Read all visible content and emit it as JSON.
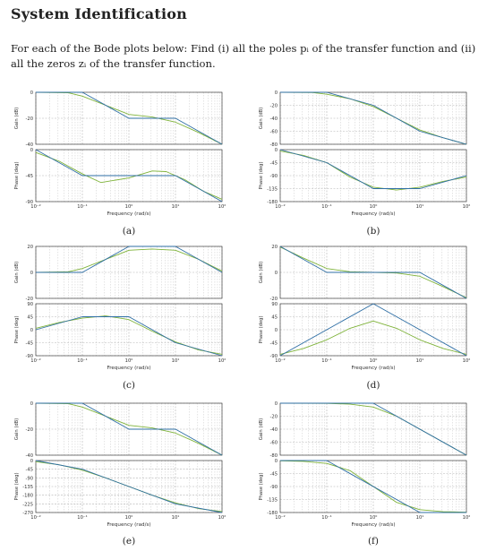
{
  "header": {
    "title": "System Identification",
    "instructions": "For each of the Bode plots below: Find (i) all the poles pᵢ of the transfer function and (ii) all the zeros zᵢ of the transfer function."
  },
  "colors": {
    "asymptote": "#2f6fa5",
    "exact": "#7fb33a",
    "grid": "#c8c8c8"
  },
  "chart_data": [
    {
      "type": "line",
      "caption": "(a)",
      "xlabel": "Frequency (rad/s)",
      "x_ticks": [
        "10⁻²",
        "10⁻¹",
        "10⁰",
        "10¹",
        "10²"
      ],
      "gain": {
        "ylabel": "Gain (dB)",
        "ylim": [
          -40,
          0
        ],
        "yticks": [
          0,
          -20,
          -40
        ],
        "asymptote": [
          [
            -2,
            0
          ],
          [
            -1,
            0
          ],
          [
            0,
            -20
          ],
          [
            1,
            -20
          ],
          [
            2,
            -40
          ]
        ],
        "exact": [
          [
            -2,
            0
          ],
          [
            -1.3,
            -0.4
          ],
          [
            -1,
            -3
          ],
          [
            -0.5,
            -10
          ],
          [
            0,
            -17
          ],
          [
            0.5,
            -19
          ],
          [
            1,
            -23
          ],
          [
            1.5,
            -31
          ],
          [
            2,
            -40
          ]
        ]
      },
      "phase": {
        "ylabel": "Phase (deg)",
        "ylim": [
          -90,
          0
        ],
        "yticks": [
          0,
          -45,
          -90
        ],
        "asymptote": [
          [
            -2,
            0
          ],
          [
            -1,
            -45
          ],
          [
            0,
            -45
          ],
          [
            1,
            -45
          ],
          [
            2,
            -90
          ]
        ],
        "exact": [
          [
            -2,
            -5
          ],
          [
            -1.5,
            -20
          ],
          [
            -1,
            -42
          ],
          [
            -0.6,
            -57
          ],
          [
            0,
            -49
          ],
          [
            0.5,
            -37
          ],
          [
            0.8,
            -38
          ],
          [
            1.2,
            -52
          ],
          [
            1.6,
            -72
          ],
          [
            2,
            -86
          ]
        ]
      }
    },
    {
      "type": "line",
      "caption": "(b)",
      "xlabel": "Frequency (rad/s)",
      "x_ticks": [
        "10⁻²",
        "10⁻¹",
        "10⁰",
        "10¹",
        "10²"
      ],
      "gain": {
        "ylabel": "Gain (dB)",
        "ylim": [
          -80,
          0
        ],
        "yticks": [
          0,
          -20,
          -40,
          -60,
          -80
        ],
        "asymptote": [
          [
            -2,
            0
          ],
          [
            -1,
            0
          ],
          [
            0,
            -20
          ],
          [
            1,
            -60
          ],
          [
            2,
            -80
          ]
        ],
        "exact": [
          [
            -2,
            0
          ],
          [
            -1.3,
            -0.5
          ],
          [
            -1,
            -3
          ],
          [
            -0.5,
            -10
          ],
          [
            0,
            -22
          ],
          [
            0.5,
            -40
          ],
          [
            1,
            -58
          ],
          [
            1.5,
            -70
          ],
          [
            2,
            -80
          ]
        ]
      },
      "phase": {
        "ylabel": "Phase (deg)",
        "ylim": [
          -180,
          0
        ],
        "yticks": [
          0,
          -45,
          -90,
          -135,
          -180
        ],
        "asymptote": [
          [
            -2,
            0
          ],
          [
            -1,
            -45
          ],
          [
            0,
            -135
          ],
          [
            1,
            -135
          ],
          [
            2,
            -90
          ]
        ],
        "exact": [
          [
            -2,
            -5
          ],
          [
            -1.5,
            -20
          ],
          [
            -1,
            -45
          ],
          [
            -0.5,
            -95
          ],
          [
            0,
            -130
          ],
          [
            0.5,
            -140
          ],
          [
            1,
            -130
          ],
          [
            1.5,
            -110
          ],
          [
            2,
            -95
          ]
        ]
      }
    },
    {
      "type": "line",
      "caption": "(c)",
      "xlabel": "Frequency (rad/s)",
      "x_ticks": [
        "10⁻²",
        "10⁻¹",
        "10⁰",
        "10¹",
        "10²"
      ],
      "gain": {
        "ylabel": "Gain (dB)",
        "ylim": [
          -20,
          20
        ],
        "yticks": [
          20,
          0,
          -20
        ],
        "asymptote": [
          [
            -2,
            0
          ],
          [
            -1,
            0
          ],
          [
            0,
            20
          ],
          [
            1,
            20
          ],
          [
            2,
            0
          ]
        ],
        "exact": [
          [
            -2,
            0
          ],
          [
            -1.3,
            0.5
          ],
          [
            -1,
            3
          ],
          [
            -0.5,
            10
          ],
          [
            0,
            17
          ],
          [
            0.5,
            18
          ],
          [
            1,
            17
          ],
          [
            1.5,
            10
          ],
          [
            2,
            1
          ]
        ]
      },
      "phase": {
        "ylabel": "Phase (deg)",
        "ylim": [
          -90,
          90
        ],
        "yticks": [
          90,
          45,
          0,
          -45,
          -90
        ],
        "asymptote": [
          [
            -2,
            0
          ],
          [
            -1,
            45
          ],
          [
            0,
            45
          ],
          [
            1,
            -45
          ],
          [
            2,
            -90
          ]
        ],
        "exact": [
          [
            -2,
            5
          ],
          [
            -1.5,
            25
          ],
          [
            -1,
            40
          ],
          [
            -0.5,
            48
          ],
          [
            0,
            35
          ],
          [
            0.5,
            -5
          ],
          [
            1,
            -42
          ],
          [
            1.5,
            -70
          ],
          [
            2,
            -85
          ]
        ]
      }
    },
    {
      "type": "line",
      "caption": "(d)",
      "xlabel": "Frequency (rad/s)",
      "x_ticks": [
        "10⁻²",
        "10⁻¹",
        "10⁰",
        "10¹",
        "10²"
      ],
      "gain": {
        "ylabel": "Gain (dB)",
        "ylim": [
          -20,
          20
        ],
        "yticks": [
          20,
          0,
          -20
        ],
        "asymptote": [
          [
            -2,
            20
          ],
          [
            -1,
            0
          ],
          [
            1,
            0
          ],
          [
            2,
            -20
          ]
        ],
        "exact": [
          [
            -2,
            19.5
          ],
          [
            -1.5,
            11
          ],
          [
            -1,
            3
          ],
          [
            -0.5,
            0.5
          ],
          [
            0,
            0
          ],
          [
            0.5,
            -0.5
          ],
          [
            1,
            -3
          ],
          [
            1.5,
            -11
          ],
          [
            2,
            -19.5
          ]
        ]
      },
      "phase": {
        "ylabel": "Phase (deg)",
        "ylim": [
          -90,
          90
        ],
        "yticks": [
          90,
          45,
          0,
          -45,
          -90
        ],
        "asymptote": [
          [
            -2,
            -90
          ],
          [
            0,
            90
          ],
          [
            2,
            -90
          ]
        ],
        "exact": [
          [
            -2,
            -85
          ],
          [
            -1.5,
            -65
          ],
          [
            -1,
            -35
          ],
          [
            -0.5,
            5
          ],
          [
            0,
            30
          ],
          [
            0.5,
            5
          ],
          [
            1,
            -35
          ],
          [
            1.5,
            -65
          ],
          [
            2,
            -85
          ]
        ]
      }
    },
    {
      "type": "line",
      "caption": "(e)",
      "xlabel": "Frequency (rad/s)",
      "x_ticks": [
        "10⁻²",
        "10⁻¹",
        "10⁰",
        "10¹",
        "10²"
      ],
      "gain": {
        "ylabel": "Gain (dB)",
        "ylim": [
          -40,
          0
        ],
        "yticks": [
          0,
          -20,
          -40
        ],
        "asymptote": [
          [
            -2,
            0
          ],
          [
            -1,
            0
          ],
          [
            0,
            -20
          ],
          [
            1,
            -20
          ],
          [
            2,
            -40
          ]
        ],
        "exact": [
          [
            -2,
            0
          ],
          [
            -1.3,
            -0.4
          ],
          [
            -1,
            -3
          ],
          [
            -0.5,
            -10
          ],
          [
            0,
            -17
          ],
          [
            0.5,
            -19
          ],
          [
            1,
            -23
          ],
          [
            1.5,
            -31
          ],
          [
            2,
            -40
          ]
        ]
      },
      "phase": {
        "ylabel": "Phase (deg)",
        "ylim": [
          -270,
          0
        ],
        "yticks": [
          0,
          -45,
          -90,
          -135,
          -180,
          -225,
          -270
        ],
        "asymptote": [
          [
            -2,
            0
          ],
          [
            -1,
            -45
          ],
          [
            0,
            -135
          ],
          [
            1,
            -225
          ],
          [
            2,
            -270
          ]
        ],
        "exact": [
          [
            -2,
            -6
          ],
          [
            -1.5,
            -22
          ],
          [
            -1,
            -50
          ],
          [
            -0.5,
            -90
          ],
          [
            0,
            -135
          ],
          [
            0.5,
            -180
          ],
          [
            1,
            -220
          ],
          [
            1.5,
            -250
          ],
          [
            2,
            -265
          ]
        ]
      }
    },
    {
      "type": "line",
      "caption": "(f)",
      "xlabel": "Frequency (rad/s)",
      "x_ticks": [
        "10⁻²",
        "10⁻¹",
        "10⁰",
        "10¹",
        "10²"
      ],
      "gain": {
        "ylabel": "Gain (dB)",
        "ylim": [
          -80,
          0
        ],
        "yticks": [
          0,
          -20,
          -40,
          -60,
          -80
        ],
        "asymptote": [
          [
            -2,
            0
          ],
          [
            0,
            0
          ],
          [
            2,
            -80
          ]
        ],
        "exact": [
          [
            -2,
            0
          ],
          [
            -1,
            -0.2
          ],
          [
            -0.5,
            -1.5
          ],
          [
            0,
            -6
          ],
          [
            0.5,
            -20
          ],
          [
            1,
            -40
          ],
          [
            1.5,
            -60
          ],
          [
            2,
            -80
          ]
        ]
      },
      "phase": {
        "ylabel": "Phase (deg)",
        "ylim": [
          -180,
          0
        ],
        "yticks": [
          0,
          -45,
          -90,
          -135,
          -180
        ],
        "asymptote": [
          [
            -2,
            0
          ],
          [
            -1,
            0
          ],
          [
            1,
            -180
          ],
          [
            2,
            -180
          ]
        ],
        "exact": [
          [
            -2,
            -1
          ],
          [
            -1.5,
            -3
          ],
          [
            -1,
            -10
          ],
          [
            -0.5,
            -35
          ],
          [
            0,
            -90
          ],
          [
            0.5,
            -145
          ],
          [
            1,
            -170
          ],
          [
            1.5,
            -177
          ],
          [
            2,
            -179
          ]
        ]
      }
    }
  ]
}
